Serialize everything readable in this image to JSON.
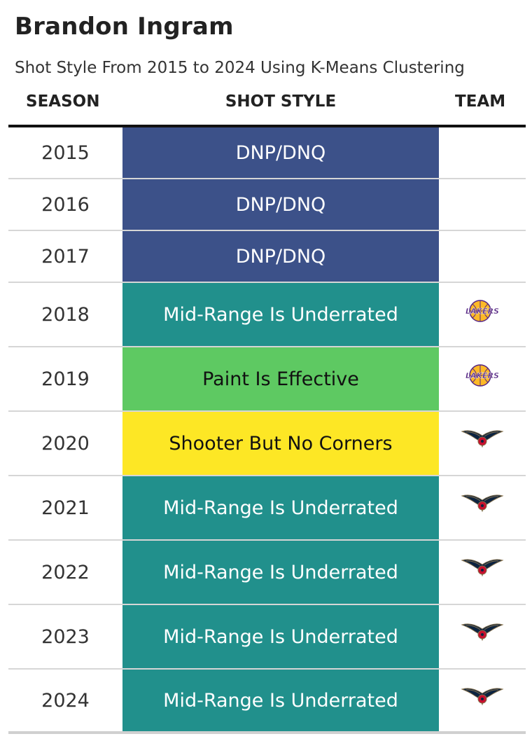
{
  "title": "Brandon Ingram",
  "subtitle": "Shot Style From 2015 to 2024 Using K-Means Clustering",
  "columns": {
    "season": "SEASON",
    "shot_style": "SHOT STYLE",
    "team": "TEAM"
  },
  "rows": [
    {
      "season": "2015",
      "shot_style": "DNP/DNQ",
      "style_color": "#3c5189",
      "text_color": "#ffffff",
      "team": ""
    },
    {
      "season": "2016",
      "shot_style": "DNP/DNQ",
      "style_color": "#3c5189",
      "text_color": "#ffffff",
      "team": ""
    },
    {
      "season": "2017",
      "shot_style": "DNP/DNQ",
      "style_color": "#3c5189",
      "text_color": "#ffffff",
      "team": ""
    },
    {
      "season": "2018",
      "shot_style": "Mid-Range Is Underrated",
      "style_color": "#21908c",
      "text_color": "#ffffff",
      "team": "lakers-logo",
      "logo_text": "LAKERS"
    },
    {
      "season": "2019",
      "shot_style": "Paint Is Effective",
      "style_color": "#5ec962",
      "text_color": "#111111",
      "team": "lakers-logo",
      "logo_text": "LAKERS"
    },
    {
      "season": "2020",
      "shot_style": "Shooter But No Corners",
      "style_color": "#fde725",
      "text_color": "#111111",
      "team": "pelicans-logo"
    },
    {
      "season": "2021",
      "shot_style": "Mid-Range Is Underrated",
      "style_color": "#21908c",
      "text_color": "#ffffff",
      "team": "pelicans-logo"
    },
    {
      "season": "2022",
      "shot_style": "Mid-Range Is Underrated",
      "style_color": "#21908c",
      "text_color": "#ffffff",
      "team": "pelicans-logo"
    },
    {
      "season": "2023",
      "shot_style": "Mid-Range Is Underrated",
      "style_color": "#21908c",
      "text_color": "#ffffff",
      "team": "pelicans-logo"
    },
    {
      "season": "2024",
      "shot_style": "Mid-Range Is Underrated",
      "style_color": "#21908c",
      "text_color": "#ffffff",
      "team": "pelicans-logo"
    }
  ]
}
